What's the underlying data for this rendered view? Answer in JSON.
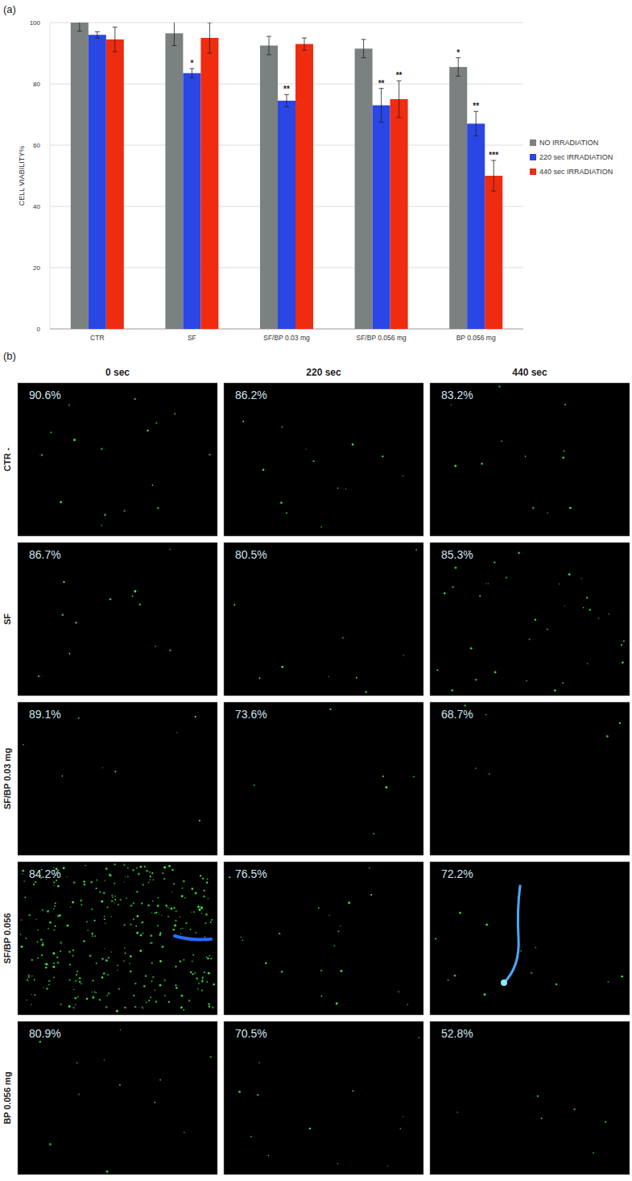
{
  "chart_data": {
    "type": "bar",
    "panel_label": "(a)",
    "ylabel": "CELL VIABILITY%",
    "categories": [
      "CTR",
      "SF",
      "SF/BP 0.03 mg",
      "SF/BP 0.056 mg",
      "BP 0.056 mg"
    ],
    "series": [
      {
        "name": "NO IRRADIATION",
        "color": "#7b8081",
        "values": [
          100,
          96.5,
          92.5,
          91.5,
          85.5
        ],
        "errors": [
          2.8,
          4,
          3,
          3,
          3
        ],
        "significance": [
          null,
          null,
          null,
          null,
          "*"
        ]
      },
      {
        "name": "220 sec IRRADIATION",
        "color": "#2a46e4",
        "values": [
          96,
          83.5,
          74.5,
          73,
          67
        ],
        "errors": [
          1,
          1.5,
          2,
          5.5,
          4
        ],
        "significance": [
          null,
          "*",
          "**",
          "**",
          "**"
        ]
      },
      {
        "name": "440 sec IRRADIATION",
        "color": "#ef2b10",
        "values": [
          94.5,
          95,
          93,
          75,
          50
        ],
        "errors": [
          4,
          5,
          2,
          6,
          5
        ],
        "significance": [
          null,
          null,
          null,
          "**",
          "***"
        ]
      }
    ],
    "ylim": [
      0,
      100
    ],
    "yticks": [
      0,
      20,
      40,
      60,
      80,
      100
    ],
    "grid": true,
    "legend": "right"
  },
  "micrograph_grid": {
    "panel_label": "(b)",
    "columns": [
      "0 sec",
      "220 sec",
      "440 sec"
    ],
    "rows": [
      {
        "label": "CTR -",
        "viability": [
          "90.6%",
          "86.2%",
          "83.2%"
        ]
      },
      {
        "label": "SF",
        "viability": [
          "86.7%",
          "80.5%",
          "85.3%"
        ]
      },
      {
        "label": "SF/BP 0.03 mg",
        "viability": [
          "89.1%",
          "73.6%",
          "68.7%"
        ]
      },
      {
        "label": "SF/BP 0.056",
        "viability": [
          "84.2%",
          "76.5%",
          "72.2%"
        ]
      },
      {
        "label": "BP 0.056 mg",
        "viability": [
          "80.9%",
          "70.5%",
          "52.8%"
        ]
      }
    ]
  }
}
